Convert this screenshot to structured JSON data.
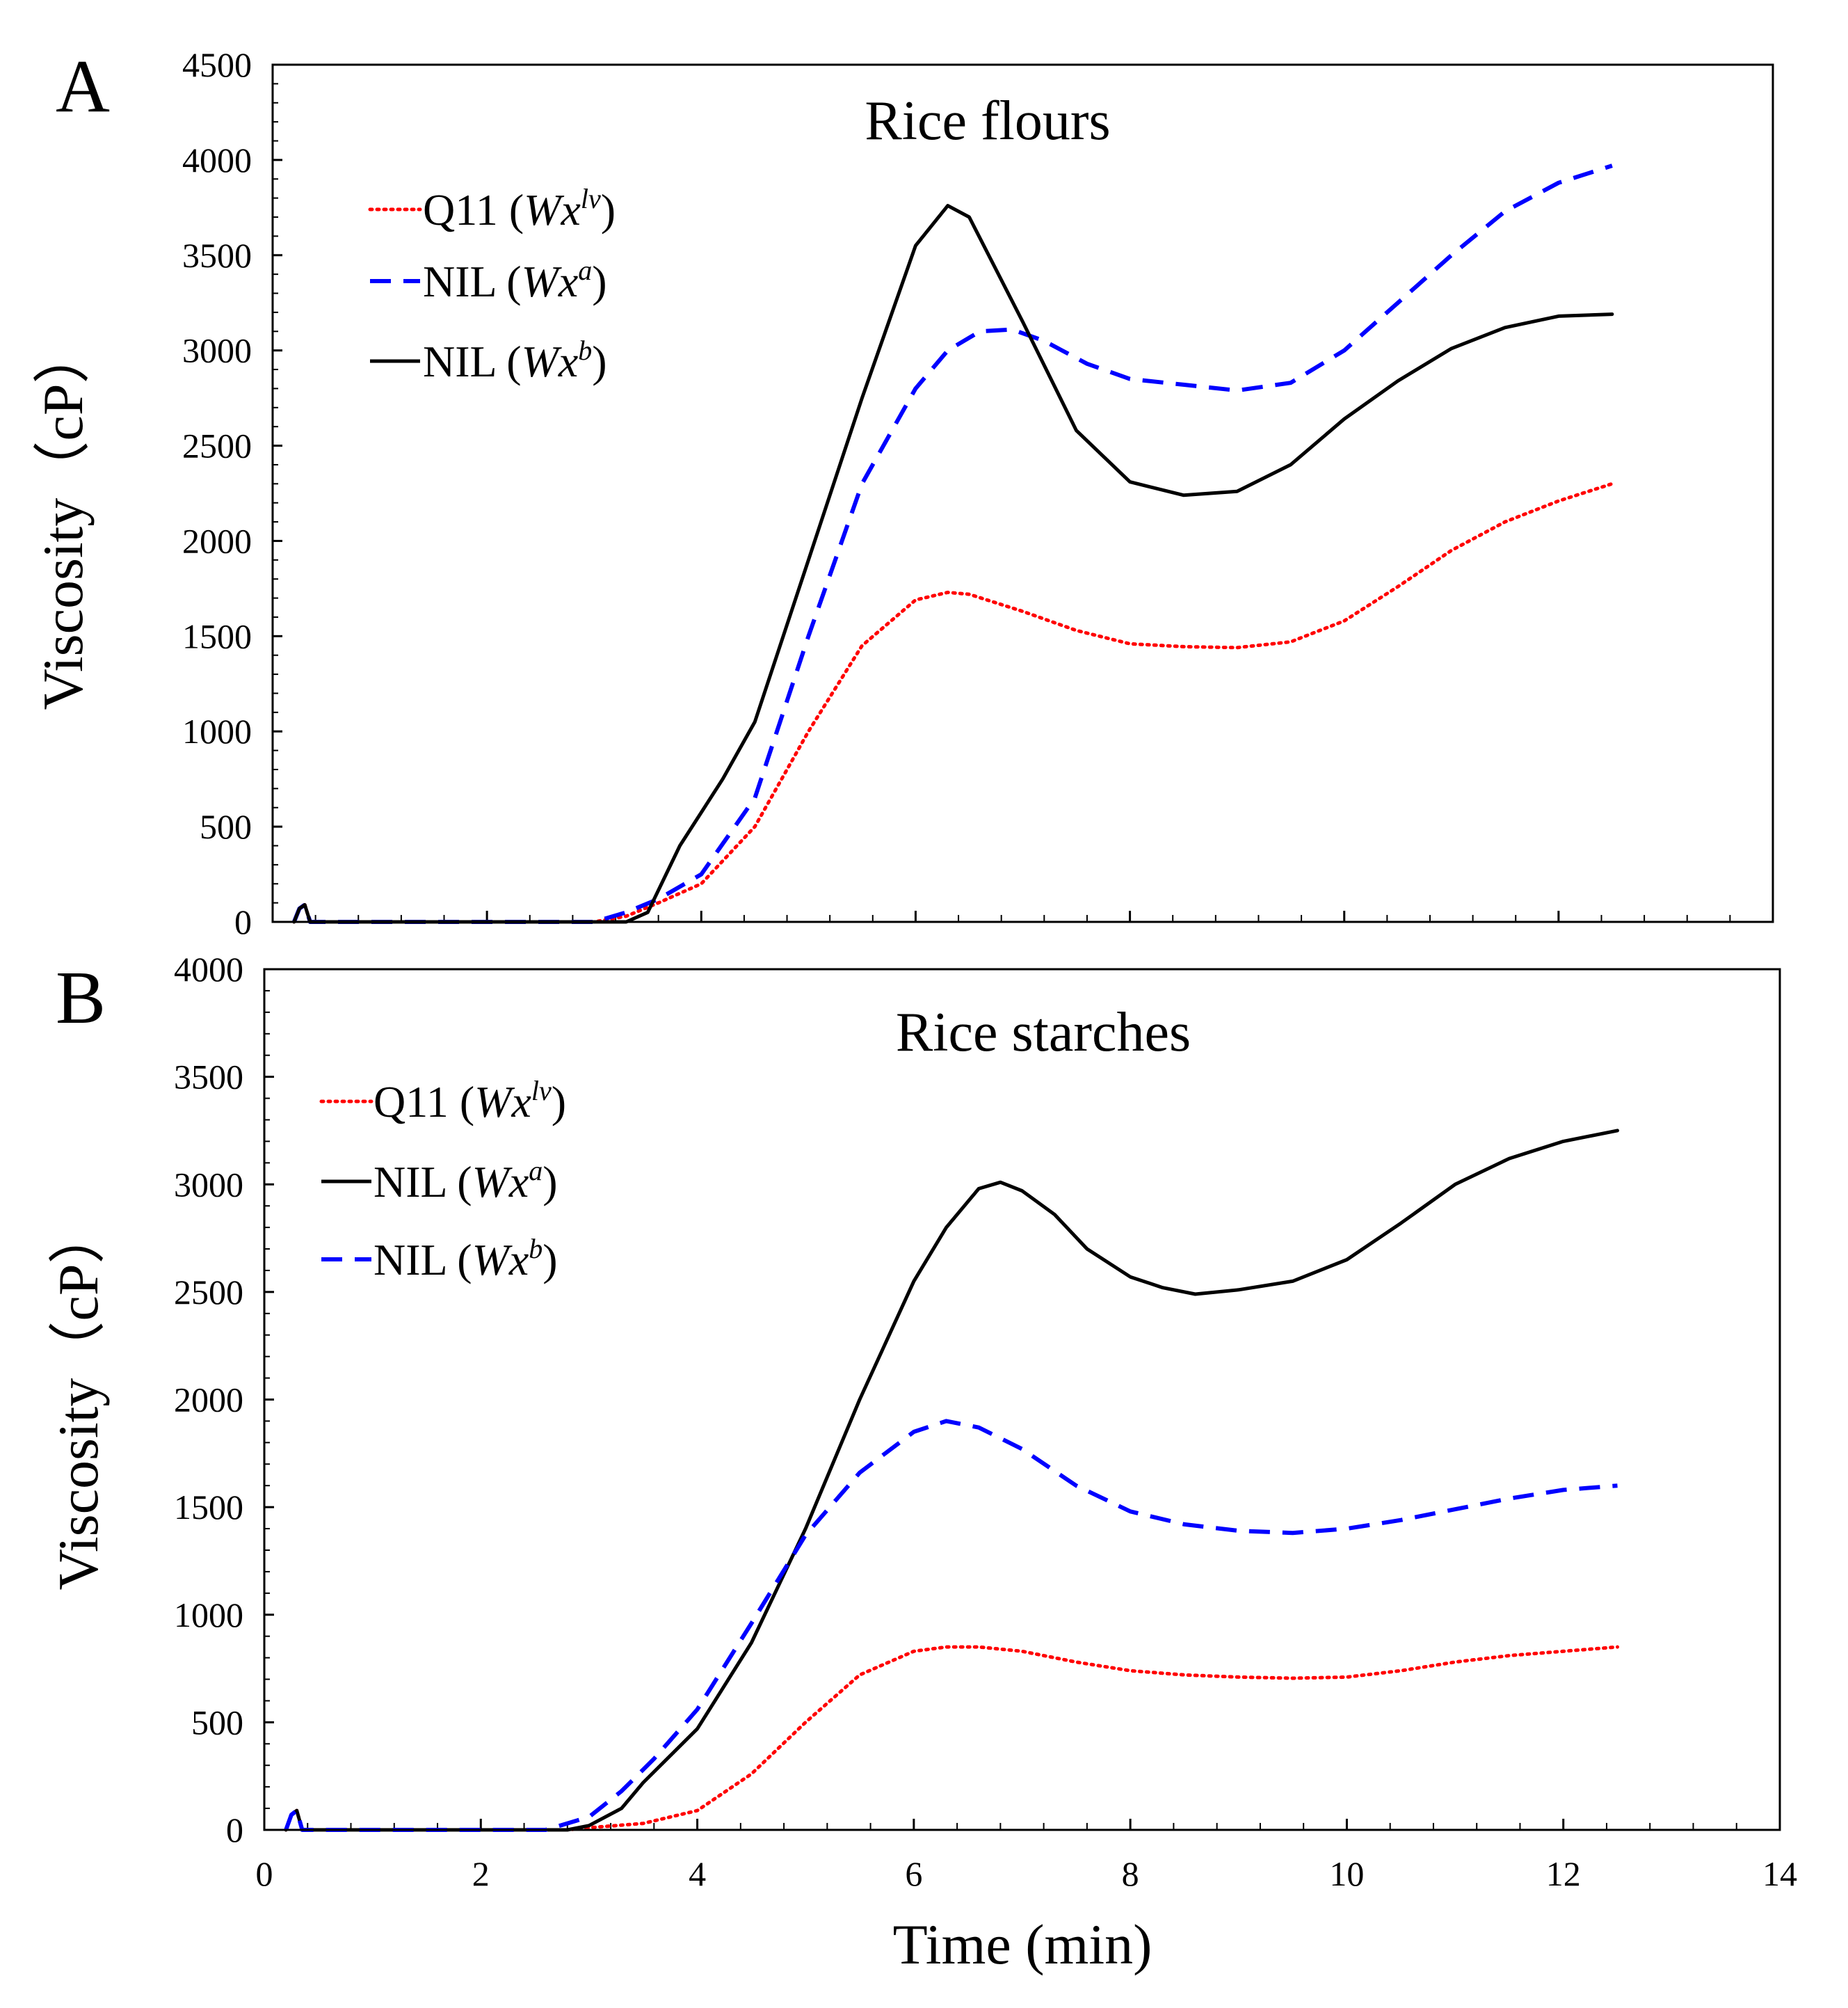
{
  "chart_data": [
    {
      "panel_label": "A",
      "type": "line",
      "title": "Rice flours",
      "xlabel": "Time (min)",
      "ylabel": "Viscosity（cP）",
      "xlim": [
        0,
        14
      ],
      "ylim": [
        0,
        4500
      ],
      "yticks": [
        "0",
        "500",
        "1000",
        "1500",
        "2000",
        "2500",
        "3000",
        "3500",
        "4000",
        "4500"
      ],
      "legend_position": "top-left",
      "series": [
        {
          "name": "Q11",
          "legend_prefix": "Q11 (",
          "legend_italic": "Wx",
          "legend_sup": "lv",
          "legend_suffix": ")",
          "style": "dotted",
          "color": "#ff0000",
          "x": [
            3.0,
            3.3,
            3.6,
            4.0,
            4.5,
            5.0,
            5.5,
            6.0,
            6.3,
            6.5,
            7.0,
            7.5,
            8.0,
            8.5,
            9.0,
            9.5,
            10.0,
            10.5,
            11.0,
            11.5,
            12.0,
            12.5
          ],
          "y": [
            0,
            30,
            100,
            200,
            500,
            1000,
            1450,
            1690,
            1730,
            1720,
            1630,
            1530,
            1460,
            1445,
            1440,
            1470,
            1580,
            1760,
            1950,
            2100,
            2210,
            2300
          ]
        },
        {
          "name": "NIL (Wxa)",
          "legend_prefix": "NIL (",
          "legend_italic": "Wx",
          "legend_sup": "a",
          "legend_suffix": ")",
          "style": "dashed",
          "color": "#0000ff",
          "x": [
            3.0,
            3.3,
            3.6,
            4.0,
            4.5,
            5.0,
            5.5,
            6.0,
            6.3,
            6.6,
            6.9,
            7.2,
            7.6,
            8.0,
            8.5,
            9.0,
            9.5,
            10.0,
            10.5,
            11.0,
            11.5,
            12.0,
            12.5
          ],
          "y": [
            0,
            50,
            120,
            250,
            650,
            1500,
            2300,
            2800,
            3000,
            3100,
            3110,
            3050,
            2930,
            2850,
            2820,
            2790,
            2830,
            3000,
            3250,
            3500,
            3730,
            3880,
            3970
          ]
        },
        {
          "name": "NIL (Wxb)",
          "legend_prefix": "NIL (",
          "legend_italic": "Wx",
          "legend_sup": "b",
          "legend_suffix": ")",
          "style": "solid",
          "color": "#000000",
          "x": [
            3.3,
            3.5,
            3.8,
            4.2,
            4.5,
            5.0,
            5.5,
            6.0,
            6.3,
            6.5,
            7.0,
            7.5,
            8.0,
            8.5,
            9.0,
            9.5,
            10.0,
            10.5,
            11.0,
            11.5,
            12.0,
            12.5
          ],
          "y": [
            0,
            50,
            400,
            750,
            1050,
            1900,
            2750,
            3550,
            3760,
            3700,
            3150,
            2580,
            2310,
            2240,
            2260,
            2400,
            2640,
            2840,
            3010,
            3120,
            3180,
            3190
          ]
        }
      ]
    },
    {
      "panel_label": "B",
      "type": "line",
      "title": "Rice starches",
      "xlabel": "Time (min)",
      "ylabel": "Viscosity（cP）",
      "xlim": [
        0,
        14
      ],
      "ylim": [
        0,
        4000
      ],
      "xticks": [
        "0",
        "2",
        "4",
        "6",
        "8",
        "10",
        "12",
        "14"
      ],
      "yticks": [
        "0",
        "500",
        "1000",
        "1500",
        "2000",
        "2500",
        "3000",
        "3500",
        "4000"
      ],
      "legend_position": "top-left",
      "series": [
        {
          "name": "Q11",
          "legend_prefix": "Q11 (",
          "legend_italic": "Wx",
          "legend_sup": "lv",
          "legend_suffix": ")",
          "style": "dotted",
          "color": "#ff0000",
          "x": [
            2.8,
            3.0,
            3.5,
            4.0,
            4.5,
            5.0,
            5.5,
            6.0,
            6.3,
            6.6,
            7.0,
            7.5,
            8.0,
            8.5,
            9.0,
            9.5,
            10.0,
            10.5,
            11.0,
            11.5,
            12.0,
            12.5
          ],
          "y": [
            0,
            10,
            30,
            90,
            260,
            500,
            720,
            830,
            850,
            850,
            830,
            780,
            740,
            720,
            710,
            705,
            710,
            740,
            780,
            810,
            830,
            850
          ]
        },
        {
          "name": "NIL (Wxa)",
          "legend_prefix": "NIL (",
          "legend_italic": "Wx",
          "legend_sup": "a",
          "legend_suffix": ")",
          "style": "solid",
          "color": "#000000",
          "x": [
            2.8,
            3.0,
            3.3,
            3.5,
            4.0,
            4.5,
            5.0,
            5.5,
            6.0,
            6.3,
            6.6,
            6.8,
            7.0,
            7.3,
            7.6,
            8.0,
            8.3,
            8.6,
            9.0,
            9.5,
            10.0,
            10.5,
            11.0,
            11.5,
            12.0,
            12.5
          ],
          "y": [
            0,
            20,
            100,
            220,
            470,
            870,
            1400,
            2000,
            2550,
            2800,
            2980,
            3010,
            2970,
            2860,
            2700,
            2570,
            2520,
            2490,
            2510,
            2550,
            2650,
            2820,
            3000,
            3120,
            3200,
            3250
          ]
        },
        {
          "name": "NIL (Wxb)",
          "legend_prefix": "NIL (",
          "legend_italic": "Wx",
          "legend_sup": "b",
          "legend_suffix": ")",
          "style": "dashed",
          "color": "#0000ff",
          "x": [
            2.6,
            3.0,
            3.3,
            3.6,
            4.0,
            4.5,
            5.0,
            5.5,
            6.0,
            6.3,
            6.6,
            7.0,
            7.5,
            8.0,
            8.5,
            9.0,
            9.5,
            10.0,
            10.5,
            11.0,
            11.5,
            12.0,
            12.5
          ],
          "y": [
            0,
            60,
            180,
            330,
            560,
            960,
            1370,
            1660,
            1850,
            1900,
            1870,
            1770,
            1600,
            1480,
            1420,
            1390,
            1380,
            1400,
            1440,
            1490,
            1540,
            1580,
            1600
          ]
        }
      ]
    }
  ]
}
